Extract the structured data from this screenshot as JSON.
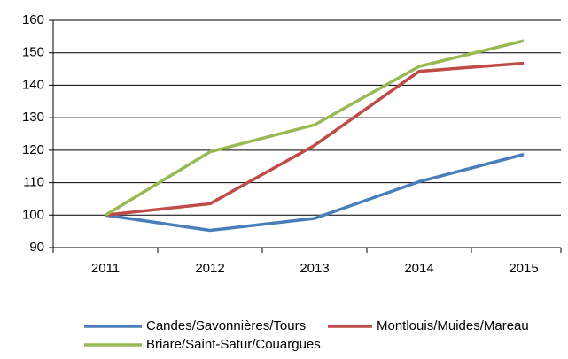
{
  "chart_data": {
    "type": "line",
    "categories": [
      "2011",
      "2012",
      "2013",
      "2014",
      "2015"
    ],
    "series": [
      {
        "name": "Candes/Savonnières/Tours",
        "color": "#4a7ebb",
        "values": [
          100,
          95.3,
          99,
          110.3,
          118.7
        ]
      },
      {
        "name": "Montlouis/Muides/Mareau",
        "color": "#be4b48",
        "values": [
          100,
          103.5,
          121.5,
          144.3,
          146.8
        ]
      },
      {
        "name": "Briare/Saint-Satur/Couargues",
        "color": "#98b954",
        "values": [
          100,
          119.5,
          127.8,
          145.8,
          153.7
        ]
      }
    ],
    "ylim": [
      90,
      160
    ],
    "yticks": [
      90,
      100,
      110,
      120,
      130,
      140,
      150,
      160
    ],
    "grid": true
  }
}
